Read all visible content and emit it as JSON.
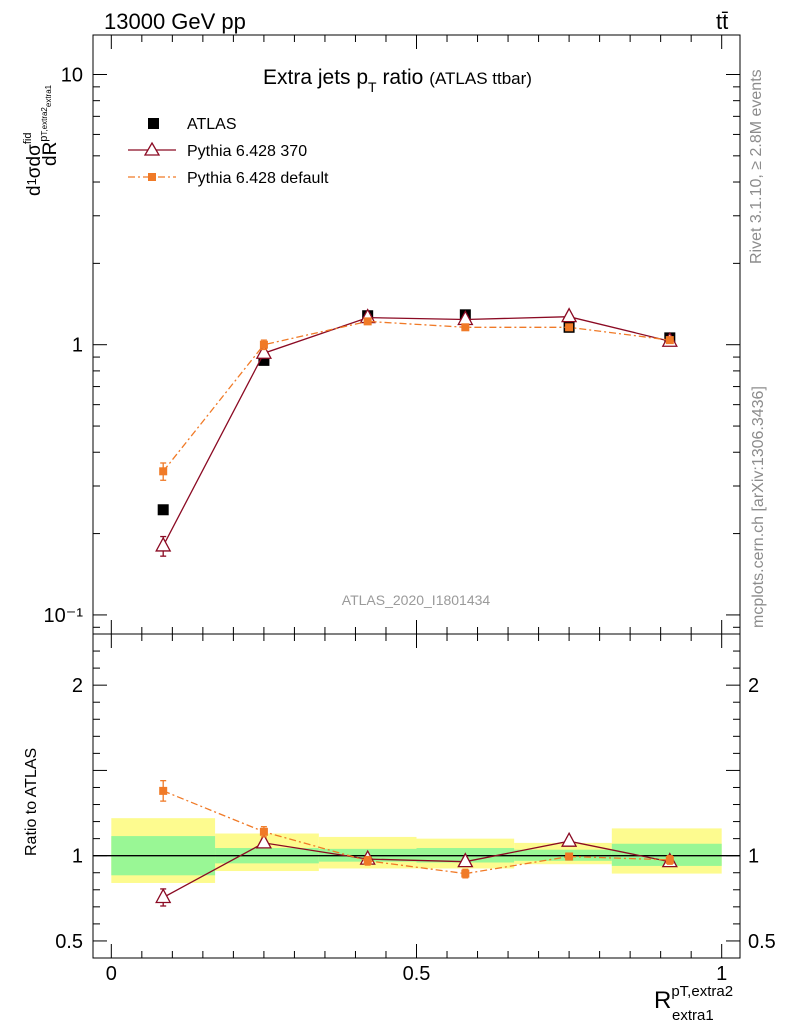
{
  "header": {
    "energy_label": "13000 GeV pp",
    "process_label": "tt̄"
  },
  "side_labels": {
    "rivet": "Rivet 3.1.10, ≥ 2.8M events",
    "mcplots": "mcplots.cern.ch [arXiv:1306.3436]"
  },
  "analysis_id": "ATLAS_2020_I1801434",
  "chart_data": [
    {
      "type": "line",
      "panel": "main",
      "title": "Extra jets p",
      "title_sub": "T",
      "title_tail": " ratio",
      "title_note": "(ATLAS ttbar)",
      "ylabel": "dσ/dR",
      "yscale": "log",
      "ylim": [
        0.085,
        14
      ],
      "xlim": [
        -0.03,
        1.03
      ],
      "y_ticks": [
        {
          "value": 10,
          "label": "10"
        },
        {
          "value": 1,
          "label": "1"
        },
        {
          "value": 0.1,
          "label": "10⁻¹"
        }
      ],
      "legend_position": "top-left",
      "series": [
        {
          "name": "ATLAS",
          "color": "#000000",
          "style": "markers",
          "x": [
            0.085,
            0.25,
            0.42,
            0.58,
            0.75,
            0.915
          ],
          "y": [
            0.245,
            0.875,
            1.28,
            1.29,
            1.16,
            1.06
          ]
        },
        {
          "name": "Pythia 6.428 370",
          "color": "#8b0a23",
          "style": "line-triangle",
          "x": [
            0.085,
            0.25,
            0.42,
            0.58,
            0.75,
            0.915
          ],
          "y": [
            0.18,
            0.93,
            1.26,
            1.24,
            1.27,
            1.03
          ],
          "err": [
            0.015,
            0.03,
            0.03,
            0.03,
            0.03,
            0.02
          ]
        },
        {
          "name": "Pythia 6.428 default",
          "color": "#f07a27",
          "style": "dashdot-square",
          "x": [
            0.085,
            0.25,
            0.42,
            0.58,
            0.75,
            0.915
          ],
          "y": [
            0.34,
            1.0,
            1.22,
            1.16,
            1.16,
            1.04
          ],
          "err": [
            0.025,
            0.04,
            0.03,
            0.03,
            0.02,
            0.02
          ]
        }
      ]
    },
    {
      "type": "line",
      "panel": "ratio",
      "ylabel": "Ratio to ATLAS",
      "xlabel": "R",
      "xlabel_sup": "pT,extra2",
      "xlabel_sub": "extra1",
      "ylim": [
        0.4,
        2.3
      ],
      "xlim": [
        -0.03,
        1.03
      ],
      "x_ticks": [
        {
          "value": 0,
          "label": "0"
        },
        {
          "value": 0.5,
          "label": "0.5"
        },
        {
          "value": 1,
          "label": "1"
        }
      ],
      "y_ticks": [
        {
          "value": 2,
          "label": "2"
        },
        {
          "value": 1,
          "label": "1"
        },
        {
          "value": 0.5,
          "label": "0.5"
        }
      ],
      "bands": [
        {
          "x0": 0.0,
          "x1": 0.17,
          "green": [
            0.885,
            1.115
          ],
          "yellow": [
            0.84,
            1.22
          ]
        },
        {
          "x0": 0.17,
          "x1": 0.34,
          "green": [
            0.955,
            1.045
          ],
          "yellow": [
            0.91,
            1.13
          ]
        },
        {
          "x0": 0.34,
          "x1": 0.5,
          "green": [
            0.965,
            1.04
          ],
          "yellow": [
            0.925,
            1.11
          ]
        },
        {
          "x0": 0.5,
          "x1": 0.66,
          "green": [
            0.96,
            1.045
          ],
          "yellow": [
            0.925,
            1.1
          ]
        },
        {
          "x0": 0.66,
          "x1": 0.82,
          "green": [
            0.97,
            1.035
          ],
          "yellow": [
            0.95,
            1.075
          ]
        },
        {
          "x0": 0.82,
          "x1": 1.0,
          "green": [
            0.94,
            1.07
          ],
          "yellow": [
            0.895,
            1.16
          ]
        }
      ],
      "series": [
        {
          "name": "Pythia 6.428 370",
          "color": "#8b0a23",
          "style": "line-triangle",
          "x": [
            0.085,
            0.25,
            0.42,
            0.58,
            0.75,
            0.915
          ],
          "y": [
            0.755,
            1.075,
            0.98,
            0.965,
            1.085,
            0.965
          ],
          "err": [
            0.05,
            0.02,
            0.02,
            0.02,
            0.02,
            0.02
          ]
        },
        {
          "name": "Pythia 6.428 default",
          "color": "#f07a27",
          "style": "dashdot-square",
          "x": [
            0.085,
            0.25,
            0.42,
            0.58,
            0.75,
            0.915
          ],
          "y": [
            1.38,
            1.14,
            0.97,
            0.895,
            0.995,
            0.975
          ],
          "err": [
            0.06,
            0.03,
            0.025,
            0.025,
            0.02,
            0.025
          ]
        }
      ]
    }
  ]
}
